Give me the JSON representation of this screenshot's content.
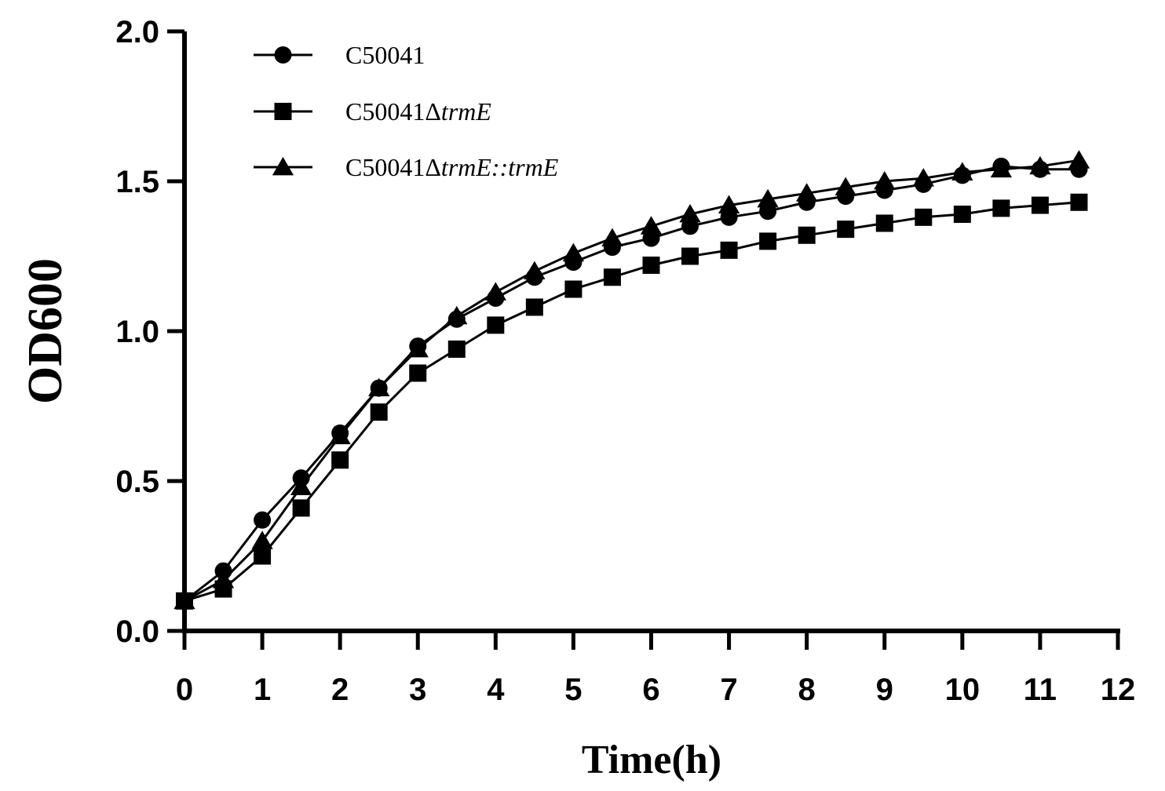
{
  "chart_data": {
    "type": "line",
    "title": "",
    "xlabel": "Time(h)",
    "ylabel": "OD600",
    "xlim": [
      0,
      12
    ],
    "ylim": [
      0,
      2.0
    ],
    "xticks": [
      "0",
      "1",
      "2",
      "3",
      "4",
      "5",
      "6",
      "7",
      "8",
      "9",
      "10",
      "11",
      "12"
    ],
    "yticks": [
      "0.0",
      "0.5",
      "1.0",
      "1.5",
      "2.0"
    ],
    "grid": false,
    "legend_position": "top-left",
    "x": [
      0,
      0.5,
      1,
      1.5,
      2,
      2.5,
      3,
      3.5,
      4,
      4.5,
      5,
      5.5,
      6,
      6.5,
      7,
      7.5,
      8,
      8.5,
      9,
      9.5,
      10,
      10.5,
      11,
      11.5
    ],
    "series": [
      {
        "name": "C50041",
        "legend_base": "C50041",
        "legend_italic": "",
        "marker": "circle",
        "values": [
          0.1,
          0.2,
          0.37,
          0.51,
          0.66,
          0.81,
          0.95,
          1.04,
          1.11,
          1.18,
          1.23,
          1.28,
          1.31,
          1.35,
          1.38,
          1.4,
          1.43,
          1.45,
          1.47,
          1.49,
          1.52,
          1.55,
          1.54,
          1.54
        ]
      },
      {
        "name": "C50041ΔtrmE",
        "legend_base": "C50041Δ",
        "legend_italic": "trmE",
        "marker": "square",
        "values": [
          0.1,
          0.14,
          0.25,
          0.41,
          0.57,
          0.73,
          0.86,
          0.94,
          1.02,
          1.08,
          1.14,
          1.18,
          1.22,
          1.25,
          1.27,
          1.3,
          1.32,
          1.34,
          1.36,
          1.38,
          1.39,
          1.41,
          1.42,
          1.43
        ]
      },
      {
        "name": "C50041ΔtrmE::trmE",
        "legend_base": "C50041Δ",
        "legend_italic": "trmE::trmE",
        "marker": "triangle",
        "values": [
          0.1,
          0.17,
          0.3,
          0.48,
          0.65,
          0.81,
          0.94,
          1.05,
          1.13,
          1.2,
          1.26,
          1.31,
          1.35,
          1.39,
          1.42,
          1.44,
          1.46,
          1.48,
          1.5,
          1.51,
          1.53,
          1.54,
          1.55,
          1.57
        ]
      }
    ]
  }
}
